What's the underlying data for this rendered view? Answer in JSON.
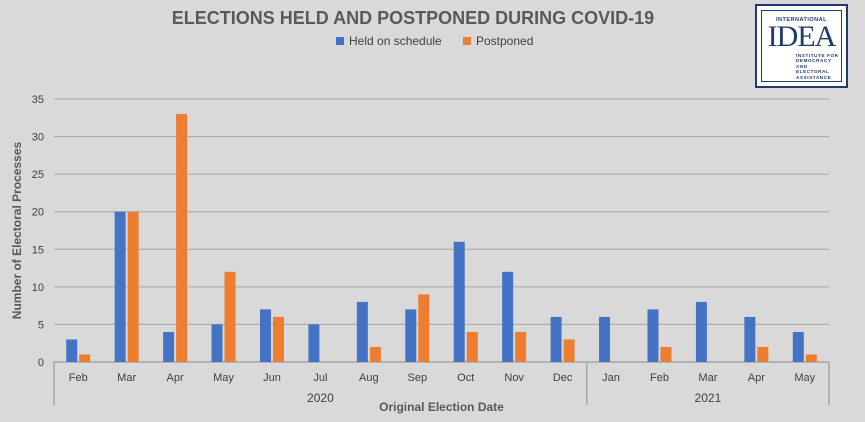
{
  "chart_data": {
    "type": "bar",
    "title": "ELECTIONS HELD AND POSTPONED DURING COVID-19",
    "xlabel": "Original Election Date",
    "ylabel": "Number of Electoral Processes",
    "ylim": [
      0,
      35
    ],
    "yticks": [
      0,
      5,
      10,
      15,
      20,
      25,
      30,
      35
    ],
    "grid": true,
    "legend_position": "top",
    "categories": [
      "Feb",
      "Mar",
      "Apr",
      "May",
      "Jun",
      "Jul",
      "Aug",
      "Sep",
      "Oct",
      "Nov",
      "Dec",
      "Jan",
      "Feb",
      "Mar",
      "Apr",
      "May"
    ],
    "groups": [
      {
        "label": "2020",
        "count": 11
      },
      {
        "label": "2021",
        "count": 5
      }
    ],
    "series": [
      {
        "name": "Held on schedule",
        "color": "#4472c4",
        "values": [
          3,
          20,
          4,
          5,
          7,
          5,
          8,
          7,
          16,
          12,
          6,
          6,
          7,
          8,
          6,
          4
        ]
      },
      {
        "name": "Postponed",
        "color": "#ed7d31",
        "values": [
          1,
          20,
          33,
          12,
          6,
          0,
          2,
          9,
          4,
          4,
          3,
          0,
          2,
          0,
          2,
          1
        ]
      }
    ]
  },
  "logo": {
    "top_text": "INTERNATIONAL",
    "wordmark": "IDEA",
    "sub_text": "INSTITUTE FOR\nDEMOCRACY AND\nELECTORAL\nASSISTANCE"
  }
}
